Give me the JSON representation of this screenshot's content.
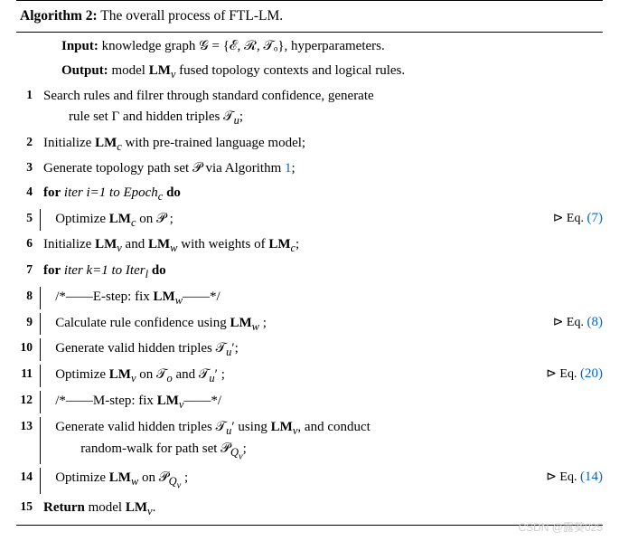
{
  "algo_number": "Algorithm 2:",
  "algo_title": "The overall process of FTL-LM.",
  "io": {
    "input_label": "Input:",
    "input_text": " knowledge graph 𝒢 = {ℰ, ℛ, 𝒯ₒ}, hyperparameters.",
    "output_label": "Output:",
    "output_text": " model ",
    "output_model": "LM",
    "output_sub": "v",
    "output_tail": " fused topology contexts and logical rules."
  },
  "lines": {
    "l1a": "Search rules and filrer through standard confidence, generate",
    "l1b": "rule set Γ and hidden triples 𝒯",
    "l1b_sub": "u",
    "l1b_tail": ";",
    "l2a": "Initialize ",
    "l2b": "LM",
    "l2c": "c",
    "l2d": " with pre-trained language model;",
    "l3a": "Generate topology path set 𝒫 via Algorithm ",
    "l3link": "1",
    "l3tail": ";",
    "l4a": "for",
    "l4b": " iter i=1 to Epoch",
    "l4c": "c",
    "l4d": " ",
    "l4e": "do",
    "l5a": "Optimize ",
    "l5b": "LM",
    "l5c": "c",
    "l5d": " on 𝒫 ;",
    "eq7": "(7)",
    "l6a": "Initialize ",
    "l6b": "LM",
    "l6c": "v",
    "l6d": " and ",
    "l6e": "LM",
    "l6f": "w",
    "l6g": " with weights of ",
    "l6h": "LM",
    "l6i": "c",
    "l6j": ";",
    "l7a": "for",
    "l7b": " iter k=1 to Iter",
    "l7c": "l",
    "l7d": " ",
    "l7e": "do",
    "l8a": "/*——E-step: fix ",
    "l8b": "LM",
    "l8c": "w",
    "l8d": "——*/",
    "l9a": "Calculate rule confidence using ",
    "l9b": "LM",
    "l9c": "w",
    "l9d": " ;",
    "eq8": "(8)",
    "l10a": "Generate valid hidden triples 𝒯",
    "l10b": "u",
    "l10c": "′;",
    "l11a": "Optimize ",
    "l11b": "LM",
    "l11c": "v",
    "l11d": " on 𝒯",
    "l11e": "o",
    "l11f": " and 𝒯",
    "l11g": "u",
    "l11h": "′ ;",
    "eq20": "(20)",
    "l12a": "/*——M-step: fix ",
    "l12b": "LM",
    "l12c": "v",
    "l12d": "——*/",
    "l13a": "Generate valid hidden triples 𝒯",
    "l13b": "u",
    "l13c": "′ using ",
    "l13d": "LM",
    "l13e": "v",
    "l13f": ", and conduct",
    "l13g": "random-walk for path set 𝒫",
    "l13h": "Q",
    "l13i": "v",
    "l13j": ";",
    "l14a": "Optimize ",
    "l14b": "LM",
    "l14c": "w",
    "l14d": " on 𝒫",
    "l14e": "Q",
    "l14f": "v",
    "l14g": " ;",
    "eq14": "(14)",
    "l15a": "Return",
    "l15b": " model ",
    "l15c": "LM",
    "l15d": "v",
    "l15e": "."
  },
  "eq_prefix": "⊳ Eq. ",
  "watermark": "CSDN @露葵025",
  "link_color": "#0066cc"
}
